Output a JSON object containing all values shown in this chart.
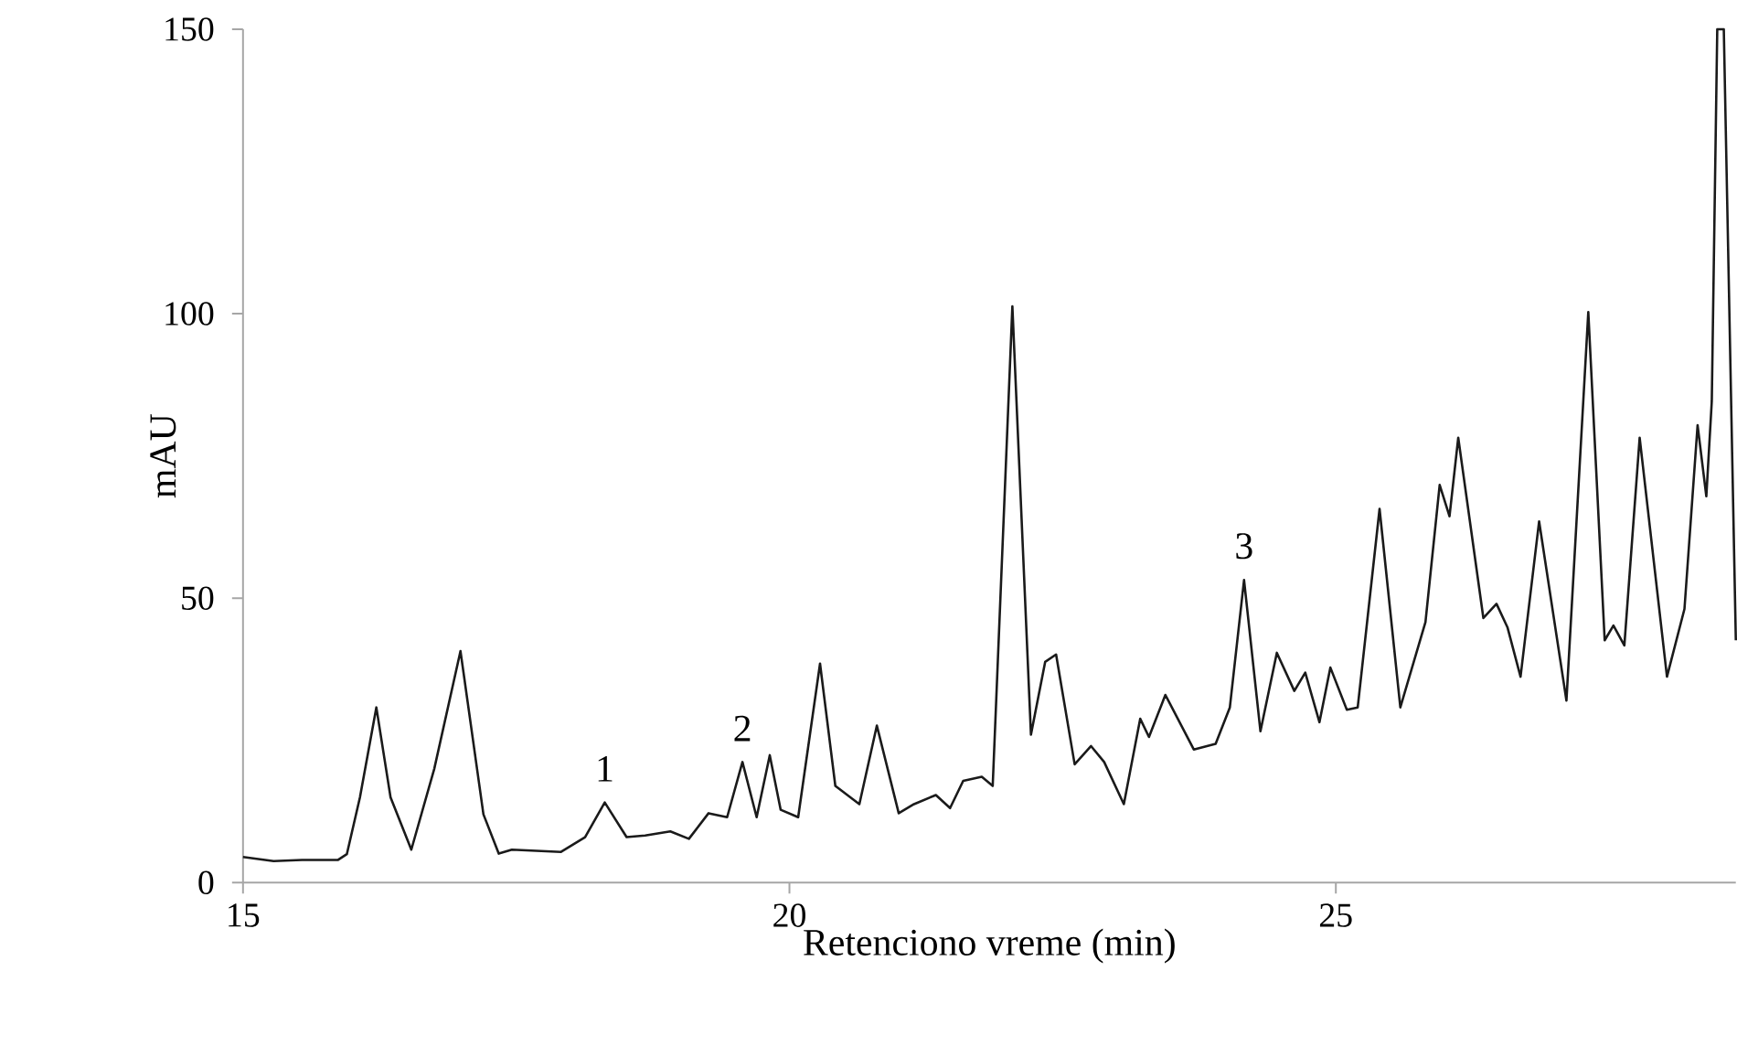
{
  "chart_data": {
    "type": "line",
    "xlabel": "Retenciono vreme (min)",
    "ylabel": "mAU",
    "xlim": [
      15,
      28.66
    ],
    "ylim": [
      0,
      150
    ],
    "xticks": [
      15,
      20,
      25
    ],
    "yticks": [
      0,
      50,
      100,
      150
    ],
    "color": "#1a1a1a",
    "x": [
      15.0,
      15.28,
      15.54,
      15.87,
      15.95,
      16.07,
      16.22,
      16.35,
      16.54,
      16.75,
      16.99,
      17.2,
      17.34,
      17.46,
      17.91,
      18.13,
      18.31,
      18.51,
      18.68,
      18.91,
      19.08,
      19.26,
      19.43,
      19.57,
      19.7,
      19.82,
      19.92,
      20.08,
      20.28,
      20.42,
      20.64,
      20.8,
      21.0,
      21.14,
      21.34,
      21.47,
      21.59,
      21.76,
      21.86,
      22.04,
      22.21,
      22.34,
      22.44,
      22.61,
      22.76,
      22.88,
      23.06,
      23.21,
      23.29,
      23.44,
      23.7,
      23.9,
      24.03,
      24.16,
      24.31,
      24.46,
      24.62,
      24.72,
      24.85,
      24.95,
      25.1,
      25.2,
      25.4,
      25.59,
      25.82,
      25.95,
      26.04,
      26.12,
      26.35,
      26.47,
      26.57,
      26.69,
      26.86,
      27.11,
      27.31,
      27.46,
      27.54,
      27.64,
      27.78,
      28.03,
      28.19,
      28.31,
      28.39,
      28.44,
      28.49,
      28.55,
      28.66
    ],
    "values": [
      4.5,
      3.8,
      4,
      4,
      5,
      15,
      30.8,
      15,
      5.8,
      20,
      40.7,
      12,
      5.1,
      5.8,
      5.4,
      8,
      14.1,
      8,
      8.3,
      9,
      7.7,
      12.2,
      11.5,
      21.2,
      11.5,
      22.4,
      12.8,
      11.5,
      38.5,
      17,
      13.8,
      27.6,
      12.2,
      13.8,
      15.4,
      13.1,
      17.9,
      18.6,
      17,
      101.3,
      26,
      38.8,
      40.1,
      20.8,
      24,
      21.2,
      13.8,
      28.8,
      25.6,
      33,
      23.4,
      24.4,
      30.8,
      53.2,
      26.6,
      40.4,
      33.7,
      36.9,
      28.2,
      37.8,
      30.4,
      30.8,
      65.7,
      30.8,
      45.8,
      69.9,
      64.4,
      78.2,
      46.5,
      49,
      44.9,
      36.2,
      63.5,
      32,
      100.3,
      42.6,
      45.2,
      41.7,
      78.2,
      36.2,
      48.1,
      80.4,
      67.9,
      84.6,
      150,
      150,
      42.6
    ],
    "annotations": [
      {
        "text": "1",
        "x": 18.31,
        "y": 14.1
      },
      {
        "text": "2",
        "x": 19.57,
        "y": 21.2
      },
      {
        "text": "3",
        "x": 24.16,
        "y": 53.2
      }
    ]
  }
}
